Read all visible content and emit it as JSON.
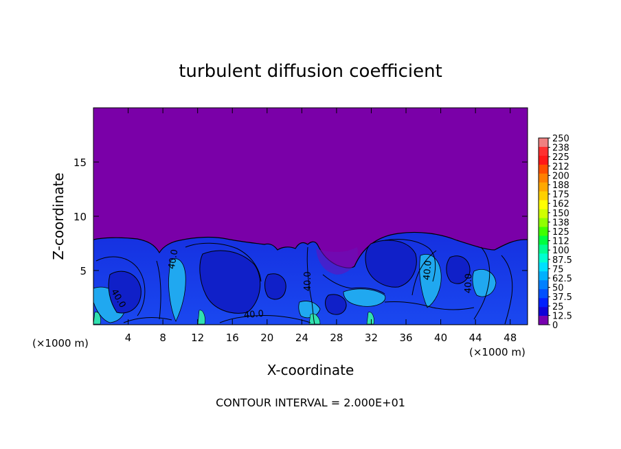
{
  "chart_data": {
    "type": "heatmap",
    "title": "turbulent diffusion coefficient",
    "xlabel": "X-coordinate",
    "ylabel": "Z-coordinate",
    "x_unit": "(×1000 m)",
    "x_unit_right": "(×1000 m)",
    "xlim": [
      0,
      50
    ],
    "ylim": [
      0,
      20
    ],
    "x_ticks": [
      4,
      8,
      12,
      16,
      20,
      24,
      28,
      32,
      36,
      40,
      44,
      48
    ],
    "y_ticks": [
      5,
      10,
      15
    ],
    "footer": "CONTOUR INTERVAL = 2.000E+01",
    "contour_labels": [
      {
        "text": "40.0",
        "x": 9.5,
        "z": 6.0,
        "angle": -80
      },
      {
        "text": "40.0",
        "x": 2.6,
        "z": 2.3,
        "angle": 60
      },
      {
        "text": "40.0",
        "x": 18.5,
        "z": 0.7,
        "angle": -5
      },
      {
        "text": "40.0",
        "x": 25.0,
        "z": 4.0,
        "angle": -90
      },
      {
        "text": "40.0",
        "x": 38.8,
        "z": 5.0,
        "angle": -85
      },
      {
        "text": "40.0",
        "x": 43.5,
        "z": 3.8,
        "angle": -88
      }
    ],
    "colorbar": {
      "min": 0,
      "max": 250,
      "tick_labels": [
        "250",
        "238",
        "225",
        "212",
        "200",
        "188",
        "175",
        "162",
        "150",
        "138",
        "125",
        "112",
        "100",
        "87.5",
        "75",
        "62.5",
        "50",
        "37.5",
        "25",
        "12.5",
        "0"
      ],
      "colors": [
        "#f08080",
        "#ff3030",
        "#ff1818",
        "#ff5000",
        "#ff8000",
        "#ffa800",
        "#ffd000",
        "#ffff00",
        "#d0ff00",
        "#90ff00",
        "#40ff00",
        "#00ff40",
        "#00ff90",
        "#00ffd0",
        "#00e0ff",
        "#00b0ff",
        "#0080ff",
        "#0050ff",
        "#0020ff",
        "#1000d8",
        "#7800b0"
      ]
    },
    "background_color": "#7a00a8"
  }
}
